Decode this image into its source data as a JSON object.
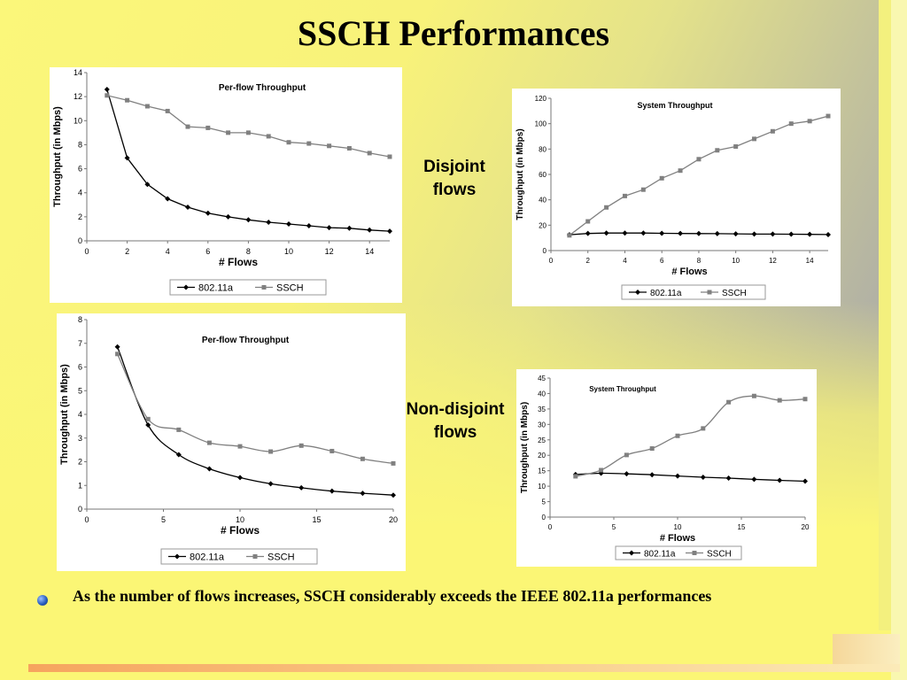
{
  "title": "SSCH Performances",
  "labels": {
    "disjoint_line1": "Disjoint",
    "disjoint_line2": "flows",
    "nondisjoint_line1": "Non-disjoint",
    "nondisjoint_line2": "flows"
  },
  "bullet": "As the number of flows increases,  SSCH considerably exceeds the IEEE 802.11a performances",
  "colors": {
    "series_80211a": "#000000",
    "series_ssch": "#808080"
  },
  "chart_data": [
    {
      "id": "disjoint-perflow",
      "type": "line",
      "title": "Per-flow Throughput",
      "xlabel": "# Flows",
      "ylabel": "Throughput (in Mbps)",
      "xlim": [
        0,
        15
      ],
      "ylim": [
        0,
        14
      ],
      "xticks": [
        0,
        2,
        4,
        6,
        8,
        10,
        12,
        14
      ],
      "yticks": [
        0,
        2,
        4,
        6,
        8,
        10,
        12,
        14
      ],
      "grid": false,
      "legend": "bottom",
      "x": [
        1,
        2,
        3,
        4,
        5,
        6,
        7,
        8,
        9,
        10,
        11,
        12,
        13,
        14,
        15
      ],
      "series": [
        {
          "name": "802.11a",
          "values": [
            12.6,
            6.9,
            4.7,
            3.5,
            2.8,
            2.3,
            2.0,
            1.75,
            1.55,
            1.4,
            1.25,
            1.1,
            1.05,
            0.9,
            0.8
          ]
        },
        {
          "name": "SSCH",
          "values": [
            12.1,
            11.7,
            11.2,
            10.8,
            9.5,
            9.4,
            9.0,
            9.0,
            8.7,
            8.2,
            8.1,
            7.9,
            7.7,
            7.3,
            7.0
          ]
        }
      ]
    },
    {
      "id": "disjoint-system",
      "type": "line",
      "title": "System Throughput",
      "xlabel": "# Flows",
      "ylabel": "Throughput (in Mbps)",
      "xlim": [
        0,
        15
      ],
      "ylim": [
        0,
        120
      ],
      "xticks": [
        0,
        2,
        4,
        6,
        8,
        10,
        12,
        14
      ],
      "yticks": [
        0,
        20,
        40,
        60,
        80,
        100,
        120
      ],
      "grid": false,
      "legend": "bottom",
      "x": [
        1,
        2,
        3,
        4,
        5,
        6,
        7,
        8,
        9,
        10,
        11,
        12,
        13,
        14,
        15
      ],
      "series": [
        {
          "name": "802.11a",
          "values": [
            12.5,
            13.5,
            13.8,
            13.8,
            13.8,
            13.6,
            13.5,
            13.4,
            13.3,
            13.2,
            13.0,
            13.0,
            12.9,
            12.8,
            12.6
          ]
        },
        {
          "name": "SSCH",
          "values": [
            12,
            23,
            34,
            43,
            48,
            57,
            63,
            72,
            79,
            82,
            88,
            94,
            100,
            102,
            106
          ]
        }
      ]
    },
    {
      "id": "nondisjoint-perflow",
      "type": "line",
      "title": "Per-flow Throughput",
      "xlabel": "# Flows",
      "ylabel": "Throughput (in Mbps)",
      "xlim": [
        0,
        20
      ],
      "ylim": [
        0,
        8
      ],
      "xticks": [
        0,
        5,
        10,
        15,
        20
      ],
      "yticks": [
        0,
        1,
        2,
        3,
        4,
        5,
        6,
        7,
        8
      ],
      "grid": false,
      "legend": "bottom",
      "x": [
        2,
        4,
        6,
        8,
        10,
        12,
        14,
        16,
        18,
        20
      ],
      "series": [
        {
          "name": "802.11a",
          "values": [
            6.85,
            3.55,
            2.3,
            1.7,
            1.33,
            1.07,
            0.9,
            0.76,
            0.67,
            0.59
          ]
        },
        {
          "name": "SSCH",
          "values": [
            6.55,
            3.8,
            3.35,
            2.8,
            2.65,
            2.43,
            2.68,
            2.45,
            2.12,
            1.93
          ]
        }
      ]
    },
    {
      "id": "nondisjoint-system",
      "type": "line",
      "title": "System Throughput",
      "xlabel": "# Flows",
      "ylabel": "Throughput (in Mbps)",
      "xlim": [
        0,
        20
      ],
      "ylim": [
        0,
        45
      ],
      "xticks": [
        0,
        5,
        10,
        15,
        20
      ],
      "yticks": [
        0,
        5,
        10,
        15,
        20,
        25,
        30,
        35,
        40,
        45
      ],
      "grid": false,
      "legend": "bottom",
      "x": [
        2,
        4,
        6,
        8,
        10,
        12,
        14,
        16,
        18,
        20
      ],
      "series": [
        {
          "name": "802.11a",
          "values": [
            13.8,
            14.2,
            14.0,
            13.7,
            13.3,
            12.9,
            12.6,
            12.2,
            11.9,
            11.6
          ]
        },
        {
          "name": "SSCH",
          "values": [
            13.2,
            15.2,
            20.1,
            22.2,
            26.3,
            28.7,
            37.2,
            39.2,
            37.8,
            38.2
          ]
        }
      ]
    }
  ]
}
